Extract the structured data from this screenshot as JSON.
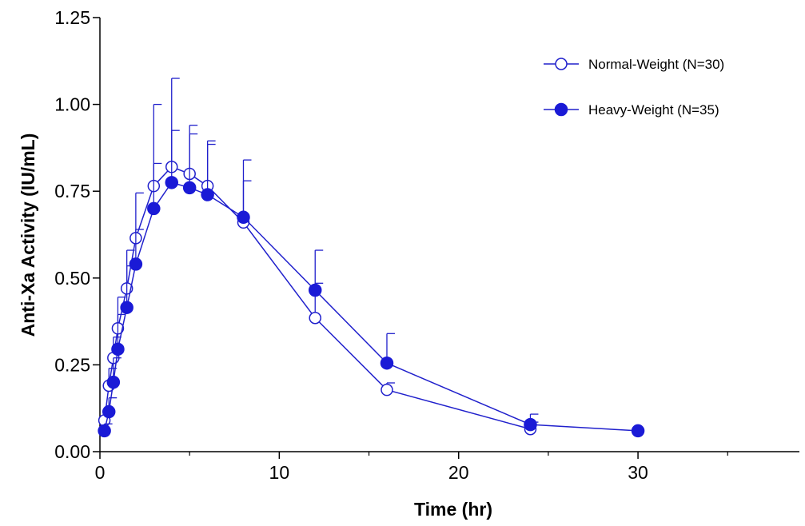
{
  "chart_data": {
    "type": "line",
    "xlabel": "Time (hr)",
    "ylabel": "Anti-Xa Activity (IU/mL)",
    "xlim": [
      0,
      39
    ],
    "ylim": [
      0,
      1.25
    ],
    "xticks": [
      0,
      10,
      20,
      30
    ],
    "xtick_labels": [
      "0",
      "10",
      "20",
      "30"
    ],
    "yticks": [
      0,
      0.25,
      0.5,
      0.75,
      1.0,
      1.25
    ],
    "ytick_labels": [
      "0.00",
      "0.25",
      "0.50",
      "0.75",
      "1.00",
      "1.25"
    ],
    "grid": false,
    "legend_position": "top-right",
    "line_color": "#2020cc",
    "series": [
      {
        "name": "Normal-Weight (N=30)",
        "marker": "open-circle",
        "x": [
          0.25,
          0.5,
          0.75,
          1,
          1.5,
          2,
          3,
          4,
          5,
          6,
          8,
          12,
          16,
          24
        ],
        "y": [
          0.09,
          0.19,
          0.27,
          0.355,
          0.47,
          0.615,
          0.765,
          0.82,
          0.8,
          0.765,
          0.66,
          0.385,
          0.178,
          0.065
        ],
        "error": [
          0.03,
          0.05,
          0.06,
          0.09,
          0.11,
          0.13,
          0.235,
          0.255,
          0.14,
          0.12,
          0.12,
          0.1,
          0.02,
          0.02
        ]
      },
      {
        "name": "Heavy-Weight (N=35)",
        "marker": "filled-circle",
        "x": [
          0.25,
          0.5,
          0.75,
          1,
          1.5,
          2,
          3,
          4,
          5,
          6,
          8,
          12,
          16,
          24,
          30
        ],
        "y": [
          0.06,
          0.115,
          0.2,
          0.295,
          0.415,
          0.54,
          0.7,
          0.775,
          0.76,
          0.74,
          0.675,
          0.465,
          0.255,
          0.078,
          0.06
        ],
        "error": [
          0.02,
          0.04,
          0.07,
          0.1,
          0.12,
          0.1,
          0.13,
          0.15,
          0.155,
          0.155,
          0.165,
          0.115,
          0.085,
          0.03,
          0.0
        ]
      }
    ]
  }
}
